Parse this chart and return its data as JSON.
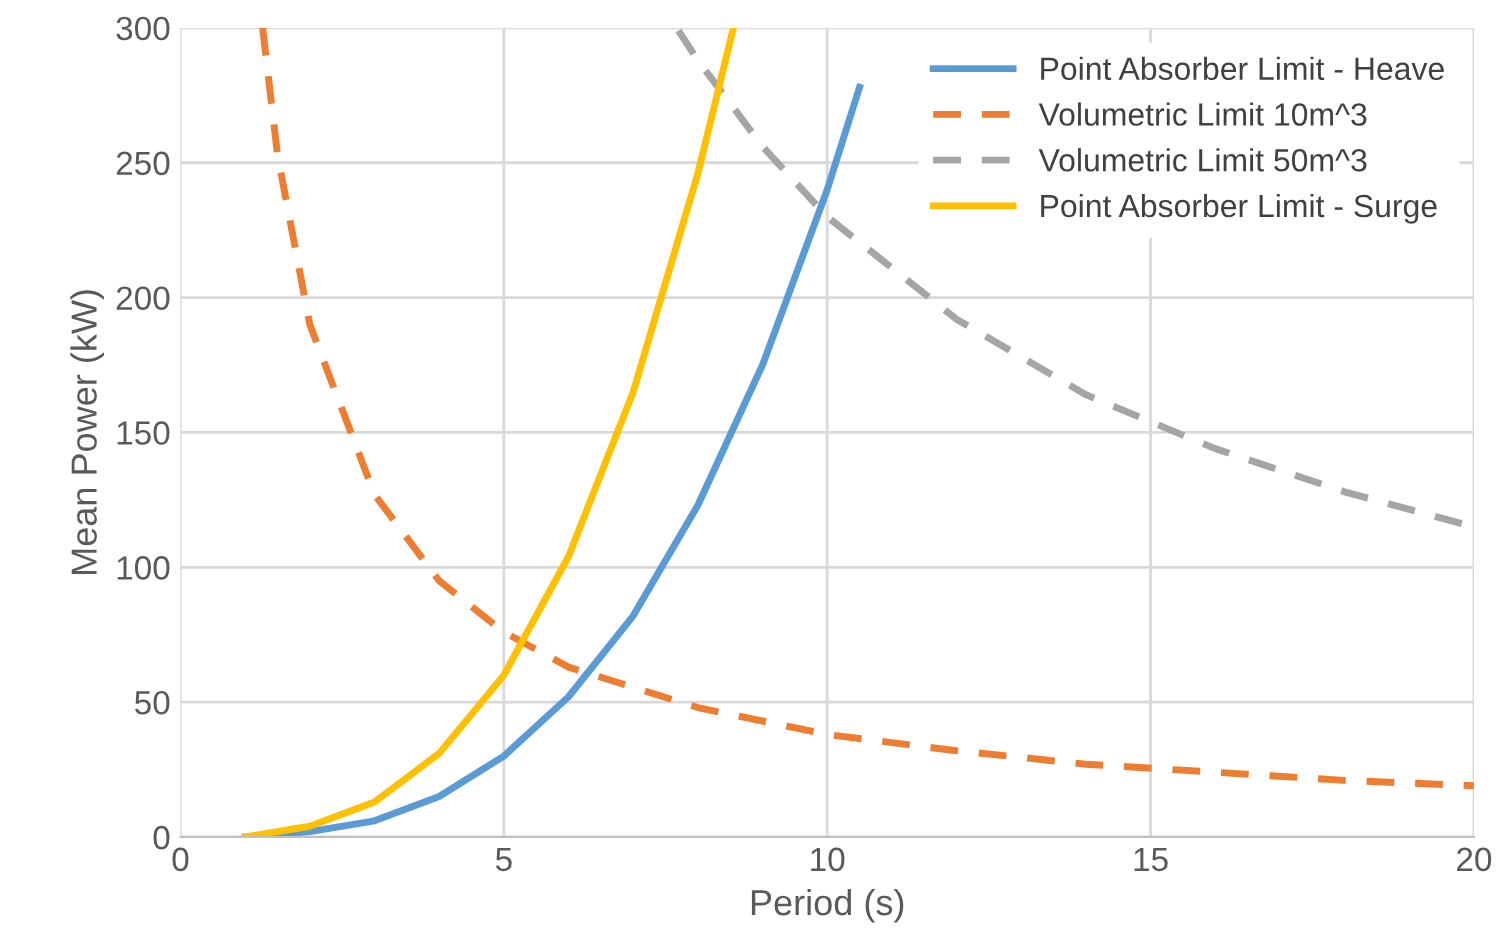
{
  "chart_data": {
    "type": "line",
    "xlabel": "Period (s)",
    "ylabel": "Mean Power (kW)",
    "xlim": [
      0,
      20
    ],
    "ylim": [
      0,
      300
    ],
    "xticks": [
      0,
      5,
      10,
      15,
      20
    ],
    "yticks": [
      0,
      50,
      100,
      150,
      200,
      250,
      300
    ],
    "grid": true,
    "legend": "top right",
    "series": [
      {
        "name": "Point Absorber Limit - Heave",
        "color": "#5b9bd5",
        "line_style": "solid",
        "x": [
          1,
          2,
          3,
          4,
          5,
          6,
          7,
          8,
          9,
          10,
          10.5
        ],
        "values": [
          0,
          2,
          6,
          15,
          30,
          52,
          82,
          123,
          175,
          240,
          278
        ]
      },
      {
        "name": "Volumetric Limit 10m^3",
        "color": "#ed7d31",
        "line_style": "dashed",
        "x": [
          1.27,
          1.5,
          2,
          3,
          4,
          5,
          6,
          8,
          10,
          12,
          14,
          16,
          18,
          20
        ],
        "values": [
          300,
          253,
          190,
          127,
          95,
          76,
          63,
          48,
          38,
          32,
          27,
          24,
          21,
          19
        ]
      },
      {
        "name": "Volumetric Limit 50m^3",
        "color": "#a5a5a5",
        "line_style": "dashed",
        "x": [
          7.7,
          8,
          9,
          10,
          12,
          14,
          16,
          18,
          20
        ],
        "values": [
          299,
          288,
          256,
          230,
          192,
          164,
          144,
          128,
          115
        ]
      },
      {
        "name": "Point Absorber Limit - Surge",
        "color": "#ffc000",
        "line_style": "solid",
        "x": [
          1,
          2,
          3,
          4,
          5,
          6,
          7,
          8,
          8.55
        ],
        "values": [
          0,
          4,
          13,
          31,
          60,
          104,
          165,
          246,
          300
        ]
      }
    ]
  }
}
